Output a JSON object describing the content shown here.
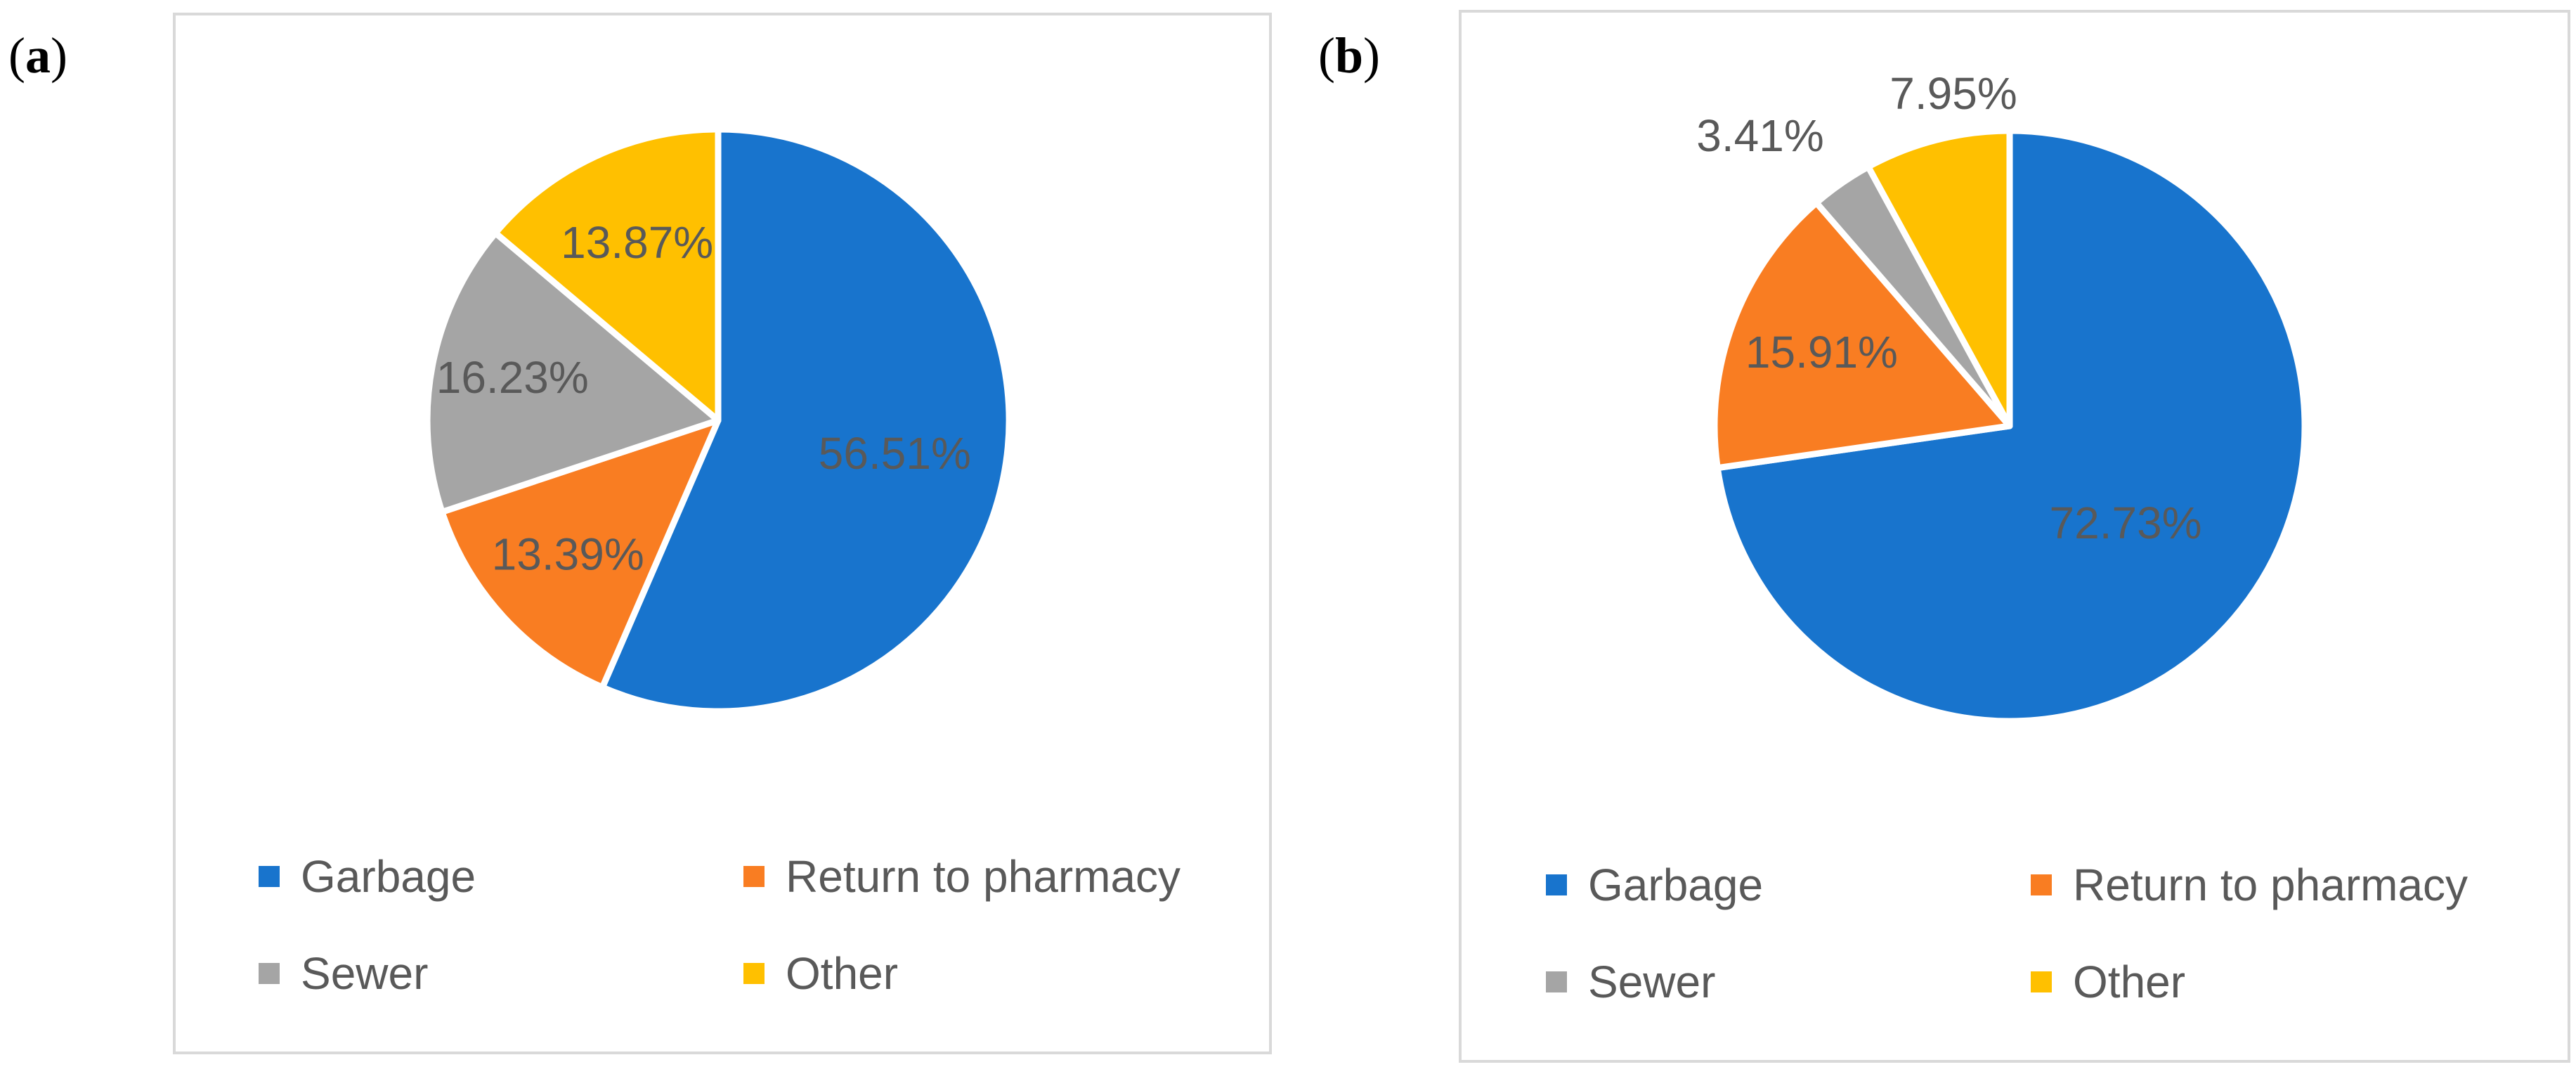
{
  "panels": [
    {
      "label_open": "(",
      "label_letter": "a",
      "label_close": ")"
    },
    {
      "label_open": "(",
      "label_letter": "b",
      "label_close": ")"
    }
  ],
  "legend": [
    {
      "name": "Garbage",
      "color": "#1874CD"
    },
    {
      "name": "Return to pharmacy",
      "color": "#F97D22"
    },
    {
      "name": "Sewer",
      "color": "#A5A5A5"
    },
    {
      "name": "Other",
      "color": "#FFC000"
    }
  ],
  "chart_data": [
    {
      "type": "pie",
      "panel": "a",
      "categories": [
        "Garbage",
        "Return to pharmacy",
        "Sewer",
        "Other"
      ],
      "values": [
        56.51,
        13.39,
        16.23,
        13.87
      ],
      "data_labels": [
        "56.51%",
        "13.39%",
        "16.23%",
        "13.87%"
      ],
      "colors": [
        "#1874CD",
        "#F97D22",
        "#A5A5A5",
        "#FFC000"
      ],
      "start": "12 o'clock, clockwise",
      "legend_position": "bottom"
    },
    {
      "type": "pie",
      "panel": "b",
      "categories": [
        "Garbage",
        "Return to pharmacy",
        "Sewer",
        "Other"
      ],
      "values": [
        72.73,
        15.91,
        3.41,
        7.95
      ],
      "data_labels": [
        "72.73%",
        "15.91%",
        "3.41%",
        "7.95%"
      ],
      "colors": [
        "#1874CD",
        "#F97D22",
        "#A5A5A5",
        "#FFC000"
      ],
      "start": "12 o'clock, clockwise",
      "legend_position": "bottom"
    }
  ]
}
